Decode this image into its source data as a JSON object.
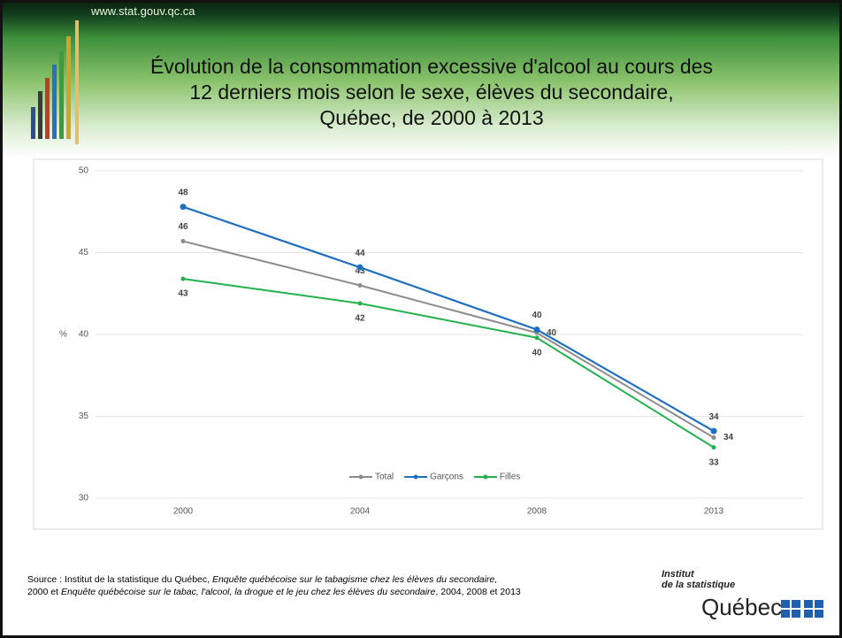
{
  "header": {
    "url": "www.stat.gouv.qc.ca"
  },
  "chart_data": {
    "type": "line",
    "title": [
      "Évolution de la consommation excessive d'alcool au cours des",
      "12 derniers mois selon le sexe, élèves du secondaire,",
      "Québec, de 2000 à 2013"
    ],
    "y_label": "%",
    "categories": [
      "2000",
      "2004",
      "2008",
      "2013"
    ],
    "series": [
      {
        "name": "Total",
        "color": "#8c8c8c",
        "values": [
          45.7,
          43.0,
          40.1,
          33.7
        ],
        "value_labels": [
          "46",
          "43",
          "40",
          "34"
        ]
      },
      {
        "name": "Garçons",
        "color": "#1f6fc0",
        "values": [
          47.8,
          44.1,
          40.3,
          34.1
        ],
        "value_labels": [
          "48",
          "44",
          "40",
          "34"
        ]
      },
      {
        "name": "Filles",
        "color": "#22b14c",
        "values": [
          43.4,
          41.9,
          39.8,
          33.1
        ],
        "value_labels": [
          "43",
          "42",
          "40",
          "33"
        ]
      }
    ],
    "ylim": [
      30,
      50
    ],
    "yticks": [
      30,
      35,
      40,
      45,
      50
    ],
    "grid": true,
    "legend": "bottom"
  },
  "source": [
    [
      {
        "text": "Source : Institut de la statistique du Québec, ",
        "italic": false
      },
      {
        "text": "Enquête québécoise sur le tabagisme chez les élèves du secondaire,",
        "italic": true
      }
    ],
    [
      {
        "text": "2000 et ",
        "italic": false
      },
      {
        "text": "Enquête québécoise sur le tabac, l'alcool, la drogue et le jeu chez les élèves du secondaire",
        "italic": true
      },
      {
        "text": ", 2004, 2008 et 2013",
        "italic": false
      }
    ]
  ],
  "logo": {
    "line1": "Institut",
    "line2": "de la statistique",
    "line3": "Québec"
  }
}
